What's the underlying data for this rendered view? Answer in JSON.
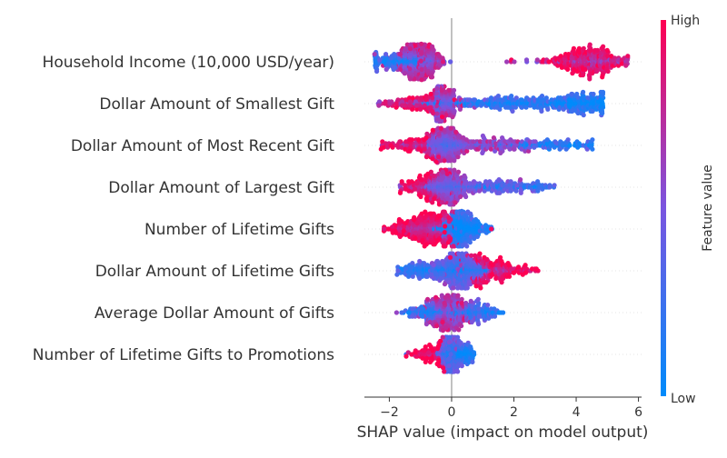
{
  "chart_data": {
    "type": "scatter",
    "subtype": "shap-beeswarm",
    "xlabel": "SHAP value (impact on model output)",
    "xlim": [
      -2.8,
      6.1
    ],
    "xticks": [
      -2,
      0,
      2,
      4,
      6
    ],
    "xtick_labels": [
      "−2",
      "0",
      "2",
      "4",
      "6"
    ],
    "colorbar": {
      "label": "Feature value",
      "high_label": "High",
      "low_label": "Low",
      "low_color": "#008bfb",
      "high_color": "#ff0052"
    },
    "features": [
      {
        "name": "Household Income (10,000 USD/year)",
        "min": -2.45,
        "max": 5.65,
        "clusters": [
          {
            "c": -1.0,
            "w": 0.35,
            "n": 340,
            "h": 0.65
          },
          {
            "c": -1.9,
            "w": 0.5,
            "n": 120,
            "h": 0.15
          },
          {
            "c": 4.6,
            "w": 0.5,
            "n": 260,
            "h": 0.8
          },
          {
            "c": 3.7,
            "w": 0.4,
            "n": 60,
            "h": 0.9
          },
          {
            "c": 2.6,
            "w": 0.45,
            "n": 14,
            "h": 0.7
          }
        ]
      },
      {
        "name": "Dollar Amount of Smallest Gift",
        "min": -2.35,
        "max": 4.85,
        "clusters": [
          {
            "c": -0.25,
            "w": 0.3,
            "n": 160,
            "h": 0.55
          },
          {
            "c": -0.4,
            "w": 0.05,
            "n": 90,
            "h": 0.5,
            "narrow": true
          },
          {
            "c": -1.2,
            "w": 0.6,
            "n": 110,
            "h": 0.85
          },
          {
            "c": 1.8,
            "w": 1.3,
            "n": 260,
            "h": 0.15
          },
          {
            "c": 4.2,
            "w": 0.5,
            "n": 160,
            "h": 0.05
          }
        ]
      },
      {
        "name": "Dollar Amount of Most Recent Gift",
        "min": -2.25,
        "max": 4.5,
        "clusters": [
          {
            "c": -0.2,
            "w": 0.35,
            "n": 240,
            "h": 0.5
          },
          {
            "c": -1.2,
            "w": 0.5,
            "n": 120,
            "h": 0.85
          },
          {
            "c": 1.3,
            "w": 0.8,
            "n": 160,
            "h": 0.55
          },
          {
            "c": 3.2,
            "w": 0.8,
            "n": 110,
            "h": 0.15
          }
        ]
      },
      {
        "name": "Dollar Amount of Largest Gift",
        "min": -1.65,
        "max": 3.3,
        "clusters": [
          {
            "c": -0.15,
            "w": 0.35,
            "n": 260,
            "h": 0.5
          },
          {
            "c": -0.9,
            "w": 0.45,
            "n": 120,
            "h": 0.85
          },
          {
            "c": 1.2,
            "w": 0.7,
            "n": 140,
            "h": 0.35
          },
          {
            "c": 2.6,
            "w": 0.4,
            "n": 40,
            "h": 0.2
          }
        ]
      },
      {
        "name": "Number of Lifetime Gifts",
        "min": -2.2,
        "max": 1.3,
        "clusters": [
          {
            "c": -0.75,
            "w": 0.4,
            "n": 300,
            "h": 0.85
          },
          {
            "c": 0.25,
            "w": 0.3,
            "n": 260,
            "h": 0.1
          },
          {
            "c": 0.85,
            "w": 0.25,
            "n": 50,
            "h": 0.05
          },
          {
            "c": -1.8,
            "w": 0.25,
            "n": 40,
            "h": 0.95
          }
        ]
      },
      {
        "name": "Dollar Amount of Lifetime Gifts",
        "min": -1.75,
        "max": 2.75,
        "clusters": [
          {
            "c": 0.3,
            "w": 0.45,
            "n": 360,
            "h": 0.3
          },
          {
            "c": -1.0,
            "w": 0.4,
            "n": 110,
            "h": 0.15
          },
          {
            "c": 1.3,
            "w": 0.45,
            "n": 150,
            "h": 0.85
          },
          {
            "c": 2.2,
            "w": 0.3,
            "n": 30,
            "h": 0.95
          }
        ]
      },
      {
        "name": "Average Dollar Amount of Gifts",
        "min": -1.75,
        "max": 1.65,
        "clusters": [
          {
            "c": -0.1,
            "w": 0.35,
            "n": 280,
            "h": 0.6
          },
          {
            "c": -0.9,
            "w": 0.35,
            "n": 90,
            "h": 0.2
          },
          {
            "c": 0.7,
            "w": 0.35,
            "n": 110,
            "h": 0.25
          },
          {
            "c": 1.3,
            "w": 0.2,
            "n": 20,
            "h": 0.1
          }
        ]
      },
      {
        "name": "Number of Lifetime Gifts to Promotions",
        "min": -1.45,
        "max": 0.7,
        "clusters": [
          {
            "c": -0.05,
            "w": 0.2,
            "n": 260,
            "h": 0.3
          },
          {
            "c": -0.8,
            "w": 0.3,
            "n": 80,
            "h": 0.95
          },
          {
            "c": 0.45,
            "w": 0.15,
            "n": 60,
            "h": 0.05
          }
        ]
      }
    ]
  }
}
